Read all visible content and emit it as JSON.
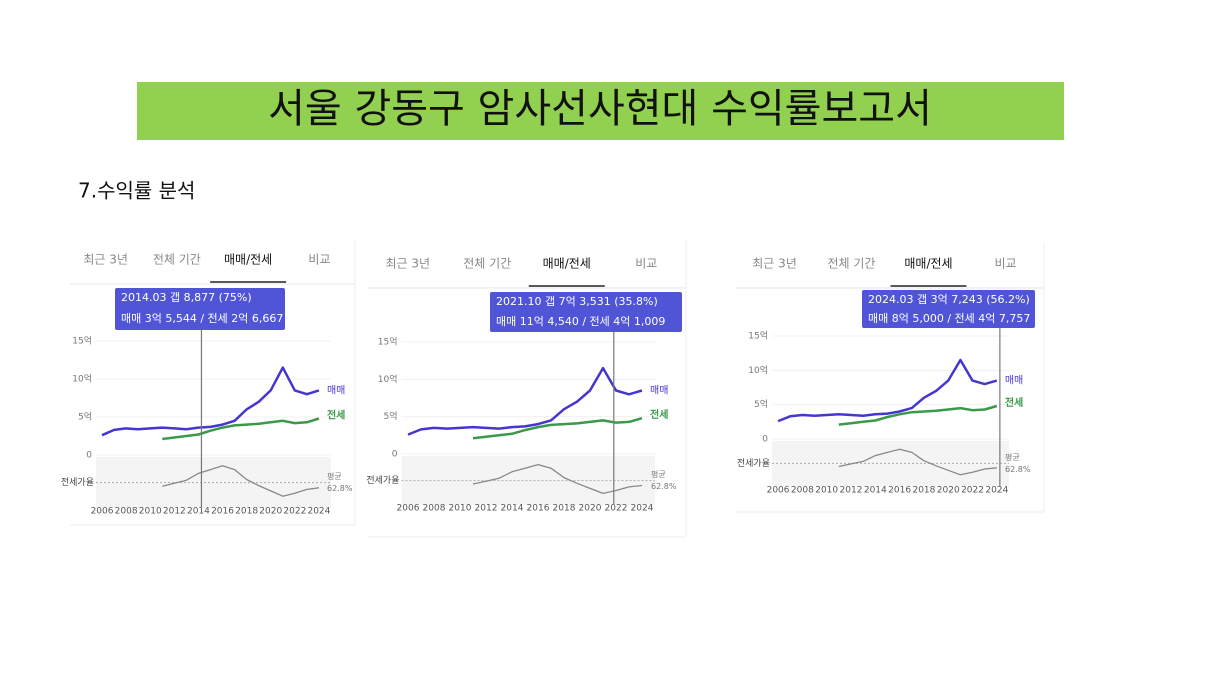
{
  "header": {
    "title": "서울 강동구 암사선사현대 수익률보고서"
  },
  "section": "7.수익률 분석",
  "chart": {
    "x": [
      2006,
      2007,
      2008,
      2009,
      2010,
      2011,
      2012,
      2013,
      2014,
      2015,
      2016,
      2017,
      2018,
      2019,
      2020,
      2021,
      2022,
      2023,
      2024
    ],
    "sale": [
      2.6,
      3.3,
      3.5,
      3.4,
      3.5,
      3.6,
      3.5,
      3.4,
      3.6,
      3.7,
      4.0,
      4.5,
      6.0,
      7.0,
      8.5,
      11.5,
      8.5,
      8.0,
      8.5
    ],
    "jeonse": [
      null,
      null,
      null,
      null,
      null,
      2.1,
      2.3,
      2.5,
      2.7,
      3.2,
      3.6,
      3.9,
      4.0,
      4.1,
      4.3,
      4.5,
      4.2,
      4.3,
      4.8
    ],
    "ratio": [
      null,
      null,
      null,
      null,
      null,
      58,
      62,
      66,
      75,
      80,
      85,
      80,
      67,
      59,
      52,
      45,
      49,
      54,
      56
    ],
    "sale_color": "#4636d0",
    "jeonse_color": "#3a9a4a",
    "ratio_color": "#888888",
    "xlim": [
      2005.5,
      2025
    ],
    "xticks": [
      2006,
      2008,
      2010,
      2012,
      2014,
      2016,
      2018,
      2020,
      2022,
      2024
    ],
    "ylim": [
      0,
      15
    ],
    "yticks": [
      0,
      {
        "value": 5,
        "label": "5억"
      },
      {
        "value": 10,
        "label": "10억"
      },
      {
        "value": 15,
        "label": "15억"
      }
    ],
    "y2lim": [
      40,
      90
    ],
    "avg": {
      "value": 62.8,
      "label": "62.8%"
    }
  },
  "panels": [
    {
      "tabs": [
        "최근 3년",
        "전체 기간",
        "매매/전세",
        "비교"
      ],
      "tooltip": [
        "2014.03  갭 8,877 (75%)",
        "매매 3억 5,544 / 전세 2억 6,667"
      ],
      "cursor": 2014.25,
      "sale_label": "매매",
      "jeonse_label": "전세",
      "ratio_label": "전세가율",
      "avg_label": "평균"
    },
    {
      "tabs": [
        "최근 3년",
        "전체 기간",
        "매매/전세",
        "비교"
      ],
      "tooltip": [
        "2021.10  갭 7억 3,531 (35.8%)",
        "매매 11억 4,540 / 전세 4억 1,009"
      ],
      "cursor": 2021.83,
      "sale_label": "매매",
      "jeonse_label": "전세",
      "ratio_label": "전세가율",
      "avg_label": "평균"
    },
    {
      "tabs": [
        "최근 3년",
        "전체 기간",
        "매매/전세",
        "비교"
      ],
      "tooltip": [
        "2024.03  갭 3억 7,243 (56.2%)",
        "매매 8억 5,000 / 전세 4억 7,757"
      ],
      "cursor": 2024.25,
      "sale_label": "매매",
      "jeonse_label": "전세",
      "ratio_label": "전세가율",
      "avg_label": "평균"
    }
  ]
}
